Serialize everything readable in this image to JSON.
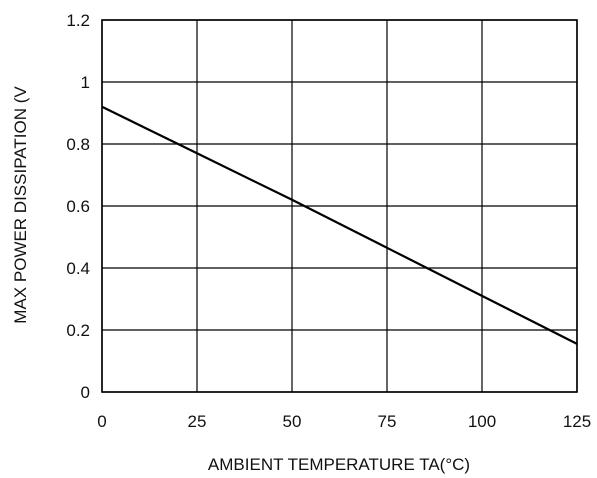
{
  "chart_data": {
    "type": "line",
    "title": "",
    "xlabel": "AMBIENT TEMPERATURE TA(°C)",
    "ylabel": "MAX POWER DISSIPATION (V",
    "xlim": [
      0,
      125
    ],
    "ylim": [
      0,
      1.2
    ],
    "x_ticks": [
      "0",
      "25",
      "50",
      "75",
      "100",
      "125"
    ],
    "y_ticks": [
      "0",
      "0.2",
      "0.4",
      "0.6",
      "0.8",
      "1",
      "1.2"
    ],
    "grid": true,
    "legend": "none",
    "series": [
      {
        "x": [
          0,
          25,
          50,
          75,
          100,
          125
        ],
        "y": [
          0.92,
          0.77,
          0.62,
          0.465,
          0.31,
          0.155
        ],
        "color": "#000000"
      }
    ]
  }
}
